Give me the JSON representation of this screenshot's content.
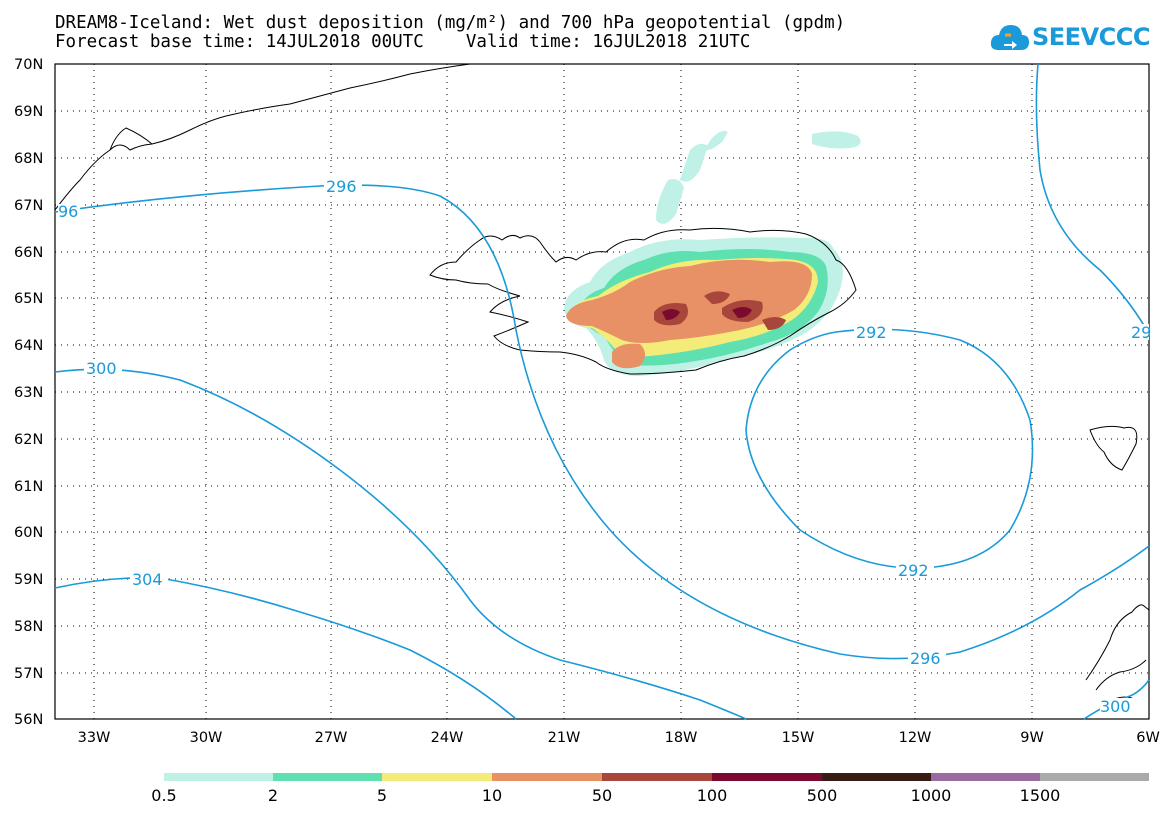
{
  "title_line1": "DREAM8-Iceland: Wet dust deposition (mg/m²) and 700 hPa geopotential (gpdm)",
  "title_line2": "Forecast base time: 14JUL2018 00UTC    Valid time: 16JUL2018 21UTC",
  "logo_text": "SEEVCCC",
  "map": {
    "lat_range": [
      56,
      70
    ],
    "lon_range": [
      -34,
      -6
    ],
    "lat_ticks": [
      "70N",
      "69N",
      "68N",
      "67N",
      "66N",
      "65N",
      "64N",
      "63N",
      "62N",
      "61N",
      "60N",
      "59N",
      "58N",
      "57N",
      "56N"
    ],
    "lon_ticks": [
      "33W",
      "30W",
      "27W",
      "24W",
      "21W",
      "18W",
      "15W",
      "12W",
      "9W",
      "6W"
    ],
    "contour_labels": [
      "296",
      "96",
      "300",
      "304",
      "292",
      "292",
      "296",
      "300",
      "29"
    ]
  },
  "colorbar": {
    "labels": [
      "0.5",
      "2",
      "5",
      "10",
      "50",
      "100",
      "500",
      "1000",
      "1500"
    ],
    "colors": [
      "#bff1e6",
      "#5ee0b0",
      "#f3ec78",
      "#e89066",
      "#a8463c",
      "#7a0a2e",
      "#3a1a14",
      "#9a6aa0",
      "#aaaaaa"
    ]
  },
  "colors": {
    "contour": "#1a9ad9",
    "coast": "#000000"
  }
}
